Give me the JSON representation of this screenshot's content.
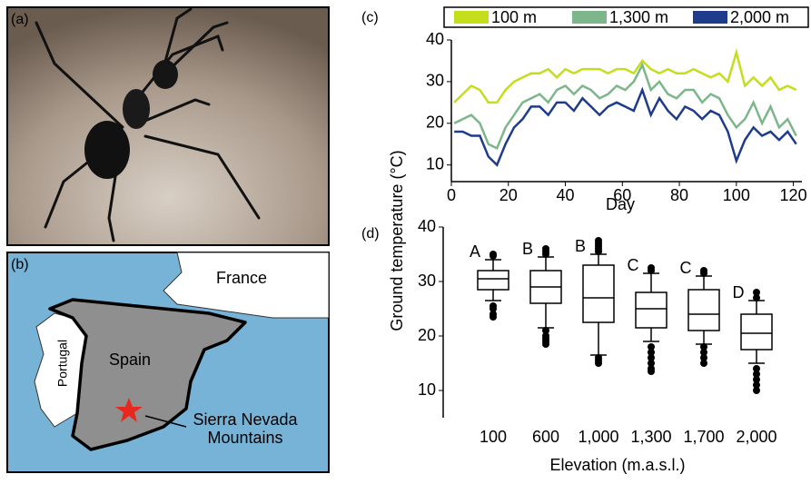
{
  "panels": {
    "photo": {
      "label": "(a)"
    },
    "map": {
      "label": "(b)",
      "places": [
        "France",
        "Spain",
        "Portugal"
      ],
      "site": [
        "Sierra Nevada",
        "Mountains"
      ]
    }
  },
  "chart_data": [
    {
      "type": "line",
      "label": "(c)",
      "x_label": "Day",
      "x": [
        1,
        4,
        7,
        10,
        13,
        16,
        19,
        22,
        25,
        28,
        31,
        34,
        37,
        40,
        43,
        46,
        49,
        52,
        55,
        58,
        61,
        64,
        67,
        70,
        73,
        76,
        79,
        82,
        85,
        88,
        91,
        94,
        97,
        100,
        103,
        106,
        109,
        112,
        115,
        118,
        121
      ],
      "series": [
        {
          "name": "100 m",
          "color": "#c5de1c",
          "values": [
            25,
            27,
            29,
            28,
            25,
            25,
            28,
            30,
            31,
            32,
            32,
            33,
            31,
            33,
            32,
            33,
            33,
            33,
            32,
            33,
            33,
            32,
            35,
            33,
            32,
            33,
            32,
            32,
            33,
            32,
            31,
            32,
            30,
            37,
            29,
            31,
            29,
            31,
            28,
            29,
            28
          ]
        },
        {
          "name": "1,300 m",
          "color": "#7db68a",
          "values": [
            20,
            21,
            22,
            20,
            15,
            14,
            19,
            22,
            25,
            26,
            27,
            25,
            28,
            29,
            27,
            29,
            28,
            26,
            27,
            29,
            28,
            30,
            34,
            28,
            30,
            27,
            26,
            28,
            28,
            25,
            27,
            26,
            22,
            19,
            21,
            25,
            20,
            24,
            19,
            21,
            17
          ]
        },
        {
          "name": "2,000 m",
          "color": "#1f3c8a",
          "values": [
            18,
            18,
            17,
            17,
            12,
            10,
            15,
            19,
            21,
            24,
            24,
            22,
            25,
            25,
            23,
            26,
            24,
            22,
            24,
            25,
            24,
            23,
            28,
            22,
            26,
            23,
            21,
            24,
            23,
            21,
            23,
            22,
            18,
            11,
            16,
            19,
            17,
            18,
            16,
            18,
            15
          ]
        }
      ],
      "xlim": [
        0,
        123
      ],
      "xticks": [
        0,
        20,
        40,
        60,
        80,
        100,
        120
      ],
      "ylim": [
        6,
        40
      ],
      "yticks": [
        10,
        20,
        30,
        40
      ]
    },
    {
      "type": "box",
      "label": "(d)",
      "x_label": "Elevation (m.a.s.l.)",
      "y_label": "Ground temperature (°C)",
      "categories": [
        "100",
        "600",
        "1,000",
        "1,300",
        "1,700",
        "2,000"
      ],
      "group_labels": [
        "A",
        "B",
        "B",
        "C",
        "C",
        "D"
      ],
      "whisker_low": [
        26.5,
        21.5,
        16.5,
        19,
        18.5,
        15
      ],
      "q1": [
        28.5,
        26,
        22.5,
        21.5,
        21,
        17.5
      ],
      "median": [
        30.5,
        29,
        27,
        25,
        24,
        20.5
      ],
      "q3": [
        32,
        32,
        33,
        28,
        28.5,
        24
      ],
      "whisker_high": [
        34,
        34.5,
        35,
        31.5,
        31,
        26.5
      ],
      "outliers": [
        [
          35,
          34.7,
          25.5,
          25,
          24,
          23.5
        ],
        [
          35,
          35.5,
          36,
          21,
          20,
          19.5,
          19,
          18.5
        ],
        [
          35.5,
          36,
          36.5,
          37,
          37.5,
          16,
          15.5,
          15
        ],
        [
          32,
          32.5,
          18,
          17,
          16,
          15,
          14,
          13.5
        ],
        [
          31.5,
          32,
          18,
          17,
          16,
          15
        ],
        [
          27,
          28,
          14,
          13,
          12,
          11,
          10
        ]
      ],
      "ylim": [
        5,
        40
      ],
      "yticks": [
        10,
        20,
        30,
        40
      ]
    }
  ]
}
